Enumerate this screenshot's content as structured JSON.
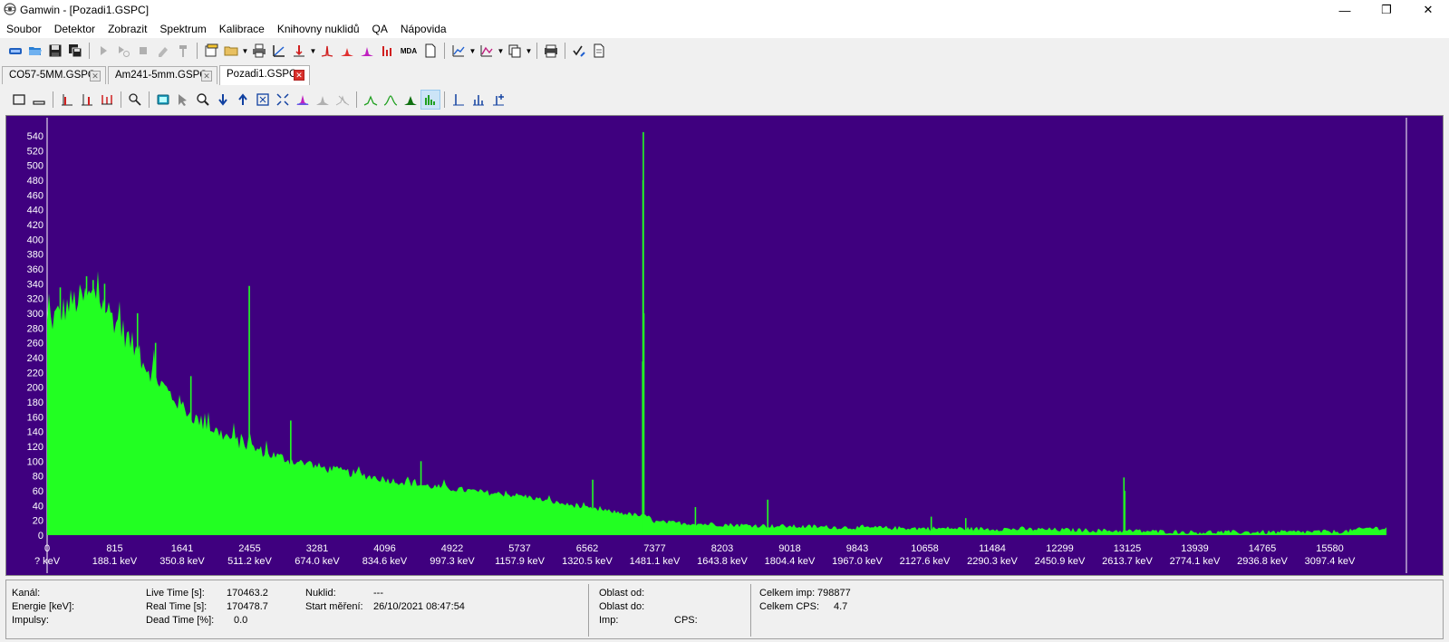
{
  "window": {
    "title": "Gamwin - [Pozadi1.GSPC]",
    "minimize": "—",
    "restore": "❐",
    "close": "✕"
  },
  "menu": [
    "Soubor",
    "Detektor",
    "Zobrazit",
    "Spektrum",
    "Kalibrace",
    "Knihovny nuklidů",
    "QA",
    "Nápovida"
  ],
  "tabs": [
    {
      "label": "CO57-5MM.GSPC",
      "active": false
    },
    {
      "label": "Am241-5mm.GSPC",
      "active": false
    },
    {
      "label": "Pozadi1.GSPC",
      "active": true
    }
  ],
  "toolbar": {
    "mda_label": "MDA"
  },
  "colors": {
    "plot_bg": "#3f007f",
    "spectrum": "#22ff22",
    "axis": "#ffffff"
  },
  "chart_data": {
    "type": "area",
    "ylim": [
      0,
      550
    ],
    "xlim": [
      0,
      16384
    ],
    "y_ticks": [
      0,
      20,
      40,
      60,
      80,
      100,
      120,
      140,
      160,
      180,
      200,
      220,
      240,
      260,
      280,
      300,
      320,
      340,
      360,
      380,
      400,
      420,
      440,
      460,
      480,
      500,
      520,
      540
    ],
    "x_ticks": [
      {
        "channel": "0",
        "energy": "? keV"
      },
      {
        "channel": "815",
        "energy": "188.1 keV"
      },
      {
        "channel": "1641",
        "energy": "350.8 keV"
      },
      {
        "channel": "2455",
        "energy": "511.2 keV"
      },
      {
        "channel": "3281",
        "energy": "674.0 keV"
      },
      {
        "channel": "4096",
        "energy": "834.6 keV"
      },
      {
        "channel": "4922",
        "energy": "997.3 keV"
      },
      {
        "channel": "5737",
        "energy": "1157.9 keV"
      },
      {
        "channel": "6562",
        "energy": "1320.5 keV"
      },
      {
        "channel": "7377",
        "energy": "1481.1 keV"
      },
      {
        "channel": "8203",
        "energy": "1643.8 keV"
      },
      {
        "channel": "9018",
        "energy": "1804.4 keV"
      },
      {
        "channel": "9843",
        "energy": "1967.0 keV"
      },
      {
        "channel": "10658",
        "energy": "2127.6 keV"
      },
      {
        "channel": "11484",
        "energy": "2290.3 keV"
      },
      {
        "channel": "12299",
        "energy": "2450.9 keV"
      },
      {
        "channel": "13125",
        "energy": "2613.7 keV"
      },
      {
        "channel": "13939",
        "energy": "2774.1 keV"
      },
      {
        "channel": "14765",
        "energy": "2936.8 keV"
      },
      {
        "channel": "15580",
        "energy": "3097.4 keV"
      }
    ],
    "continuum": [
      [
        0,
        285
      ],
      [
        300,
        315
      ],
      [
        600,
        325
      ],
      [
        900,
        280
      ],
      [
        1200,
        230
      ],
      [
        1500,
        190
      ],
      [
        1800,
        158
      ],
      [
        2100,
        138
      ],
      [
        2400,
        122
      ],
      [
        2700,
        110
      ],
      [
        3000,
        100
      ],
      [
        3400,
        90
      ],
      [
        3800,
        82
      ],
      [
        4200,
        74
      ],
      [
        4600,
        67
      ],
      [
        5000,
        62
      ],
      [
        5400,
        57
      ],
      [
        5800,
        53
      ],
      [
        6200,
        44
      ],
      [
        6600,
        36
      ],
      [
        7000,
        30
      ],
      [
        7300,
        25
      ],
      [
        7400,
        18
      ],
      [
        8000,
        15
      ],
      [
        9000,
        12
      ],
      [
        10000,
        10
      ],
      [
        11000,
        9
      ],
      [
        12000,
        8
      ],
      [
        13000,
        6
      ],
      [
        14000,
        4
      ],
      [
        15000,
        4
      ],
      [
        15800,
        5
      ],
      [
        16100,
        10
      ],
      [
        16384,
        9
      ]
    ],
    "peaks": [
      {
        "channel": 160,
        "value": 335
      },
      {
        "channel": 480,
        "value": 350
      },
      {
        "channel": 560,
        "value": 345
      },
      {
        "channel": 700,
        "value": 340
      },
      {
        "channel": 1100,
        "value": 300
      },
      {
        "channel": 1320,
        "value": 260
      },
      {
        "channel": 1750,
        "value": 215
      },
      {
        "channel": 2460,
        "value": 337
      },
      {
        "channel": 2965,
        "value": 155
      },
      {
        "channel": 4550,
        "value": 100
      },
      {
        "channel": 6640,
        "value": 75
      },
      {
        "channel": 7248,
        "value": 235
      },
      {
        "channel": 7252,
        "value": 480
      },
      {
        "channel": 7256,
        "value": 545
      },
      {
        "channel": 7262,
        "value": 300
      },
      {
        "channel": 7890,
        "value": 38
      },
      {
        "channel": 8770,
        "value": 48
      },
      {
        "channel": 10760,
        "value": 25
      },
      {
        "channel": 11180,
        "value": 23
      },
      {
        "channel": 13105,
        "value": 78
      },
      {
        "channel": 13115,
        "value": 60
      }
    ]
  },
  "status": {
    "kanal": "Kanál:",
    "energie": "Energie [keV]:",
    "impulsy": "Impulsy:",
    "live_label": "Live Time [s]:",
    "live_value": "170463.2",
    "real_label": "Real Time [s]:",
    "real_value": "170478.7",
    "dead_label": "Dead Time [%]:",
    "dead_value": "0.0",
    "nuklid_label": "Nuklid:",
    "nuklid_value": "---",
    "start_label": "Start měření:",
    "start_value": "26/10/2021 08:47:54",
    "oblast_od": "Oblast od:",
    "oblast_do": "Oblast do:",
    "imp": "Imp:",
    "cps": "CPS:",
    "celkem_imp_label": "Celkem imp:",
    "celkem_imp_value": "798877",
    "celkem_cps_label": "Celkem CPS:",
    "celkem_cps_value": "4.7"
  }
}
